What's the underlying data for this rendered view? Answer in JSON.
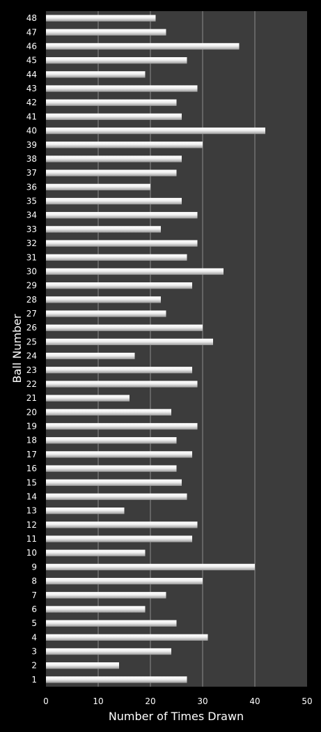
{
  "chart_data": {
    "type": "bar",
    "orientation": "horizontal",
    "xlabel": "Number of Times Drawn",
    "ylabel": "Ball Number",
    "xlim": [
      0,
      50
    ],
    "xticks": [
      0,
      10,
      20,
      30,
      40,
      50
    ],
    "grid": "vertical",
    "legend": "none",
    "plot_background": "#3c3c3c",
    "page_background": "#000000",
    "bar_color": "#e6e6e6",
    "grid_color": "#8c8c8c",
    "text_color": "#ffffff",
    "categories": [
      "1",
      "2",
      "3",
      "4",
      "5",
      "6",
      "7",
      "8",
      "9",
      "10",
      "11",
      "12",
      "13",
      "14",
      "15",
      "16",
      "17",
      "18",
      "19",
      "20",
      "21",
      "22",
      "23",
      "24",
      "25",
      "26",
      "27",
      "28",
      "29",
      "30",
      "31",
      "32",
      "33",
      "34",
      "35",
      "36",
      "37",
      "38",
      "39",
      "40",
      "41",
      "42",
      "43",
      "44",
      "45",
      "46",
      "47",
      "48"
    ],
    "values": [
      27,
      14,
      24,
      31,
      25,
      19,
      23,
      30,
      40,
      19,
      28,
      29,
      15,
      27,
      26,
      25,
      28,
      25,
      29,
      24,
      16,
      29,
      28,
      17,
      32,
      30,
      23,
      22,
      28,
      34,
      27,
      29,
      22,
      29,
      26,
      20,
      25,
      26,
      30,
      42,
      26,
      25,
      29,
      19,
      27,
      37,
      23,
      21
    ]
  }
}
